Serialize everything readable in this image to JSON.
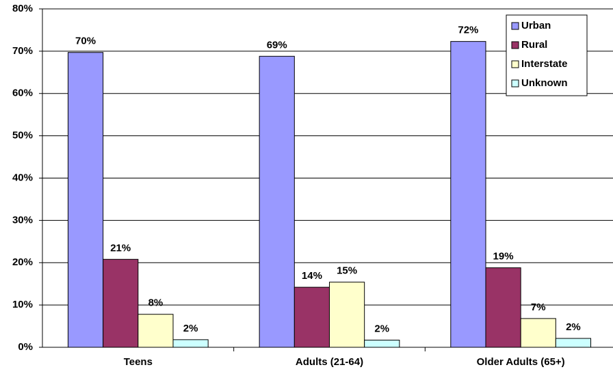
{
  "chart_data": {
    "type": "bar",
    "categories": [
      "Teens",
      "Adults (21-64)",
      "Older Adults (65+)"
    ],
    "series": [
      {
        "name": "Urban",
        "color": "#9999ff",
        "values": [
          69.7,
          68.8,
          72.3
        ],
        "value_labels": [
          "70%",
          "69%",
          "72%"
        ]
      },
      {
        "name": "Rural",
        "color": "#993366",
        "values": [
          20.8,
          14.2,
          18.8
        ],
        "value_labels": [
          "21%",
          "14%",
          "19%"
        ]
      },
      {
        "name": "Interstate",
        "color": "#ffffcc",
        "values": [
          7.8,
          15.4,
          6.8
        ],
        "value_labels": [
          "8%",
          "15%",
          "7%"
        ]
      },
      {
        "name": "Unknown",
        "color": "#ccffff",
        "values": [
          1.8,
          1.7,
          2.1
        ],
        "value_labels": [
          "2%",
          "2%",
          "2%"
        ]
      }
    ],
    "ylim": [
      0,
      80
    ],
    "yticks": [
      {
        "value": 0,
        "label": "0%"
      },
      {
        "value": 10,
        "label": "10%"
      },
      {
        "value": 20,
        "label": "20%"
      },
      {
        "value": 30,
        "label": "30%"
      },
      {
        "value": 40,
        "label": "40%"
      },
      {
        "value": 50,
        "label": "50%"
      },
      {
        "value": 60,
        "label": "60%"
      },
      {
        "value": 70,
        "label": "70%"
      },
      {
        "value": 80,
        "label": "80%"
      }
    ],
    "grid": true,
    "legend_position": "upper right"
  }
}
